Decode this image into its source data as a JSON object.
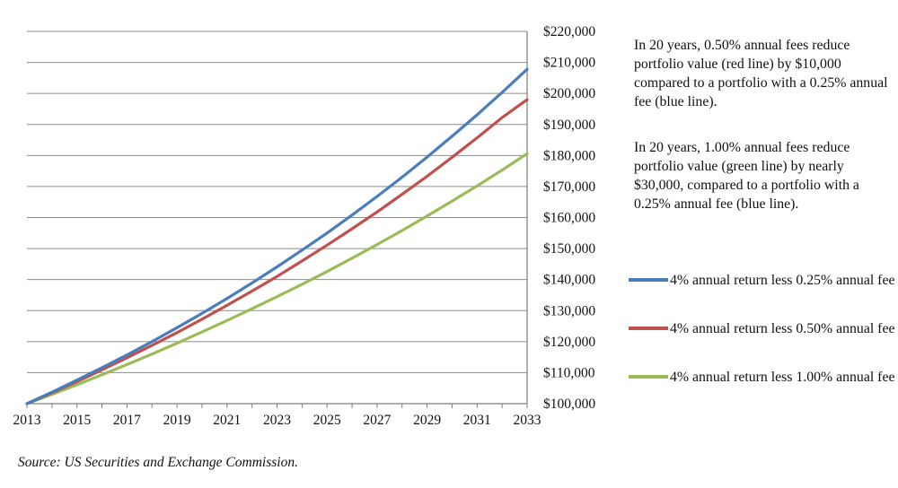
{
  "chart_data": {
    "type": "line",
    "title": "",
    "xlabel": "",
    "ylabel": "",
    "x": [
      2013,
      2014,
      2015,
      2016,
      2017,
      2018,
      2019,
      2020,
      2021,
      2022,
      2023,
      2024,
      2025,
      2026,
      2027,
      2028,
      2029,
      2030,
      2031,
      2032,
      2033
    ],
    "xticks": [
      "2013",
      "2015",
      "2017",
      "2019",
      "2021",
      "2023",
      "2025",
      "2027",
      "2029",
      "2031",
      "2033"
    ],
    "ylim": [
      100000,
      220000
    ],
    "yticks": [
      "$100,000",
      "$110,000",
      "$120,000",
      "$130,000",
      "$140,000",
      "$150,000",
      "$160,000",
      "$170,000",
      "$180,000",
      "$190,000",
      "$200,000",
      "$210,000",
      "$220,000"
    ],
    "grid": true,
    "series": [
      {
        "name": "4% annual return less 0.25% annual fee",
        "color": "#4a7ebb",
        "values": [
          100000,
          103700,
          107600,
          111600,
          115700,
          120000,
          124500,
          129100,
          133900,
          138900,
          144100,
          149500,
          155000,
          160800,
          166800,
          173000,
          179500,
          186200,
          193100,
          200300,
          207800
        ]
      },
      {
        "name": "4% annual return less 0.50% annual fee",
        "color": "#c0504d",
        "values": [
          100000,
          103500,
          107100,
          110900,
          114800,
          118800,
          122900,
          127200,
          131700,
          136300,
          141000,
          146000,
          151100,
          156400,
          161800,
          167500,
          173300,
          179400,
          185700,
          192200,
          198000
        ]
      },
      {
        "name": "4% annual return less 1.00% annual fee",
        "color": "#9bbb59",
        "values": [
          100000,
          103000,
          106100,
          109300,
          112600,
          116000,
          119500,
          123100,
          126800,
          130600,
          134500,
          138500,
          142600,
          146900,
          151300,
          155800,
          160500,
          165300,
          170200,
          175300,
          180600
        ]
      }
    ]
  },
  "annotations": {
    "first": "In 20 years, 0.50% annual fees reduce portfolio value (red line) by $10,000 compared to a portfolio with a 0.25% annual fee (blue line).",
    "second": "In 20 years, 1.00% annual fees reduce portfolio value (green line) by nearly $30,000, compared to a portfolio with a 0.25% annual fee (blue line)."
  },
  "legend": {
    "items": [
      {
        "label": "4% annual return less 0.25% annual fee",
        "color": "#4a7ebb"
      },
      {
        "label": "4% annual return less 0.50% annual fee",
        "color": "#c0504d"
      },
      {
        "label": "4% annual return less 1.00% annual fee",
        "color": "#9bbb59"
      }
    ]
  },
  "source": "Source: US Securities and Exchange Commission."
}
